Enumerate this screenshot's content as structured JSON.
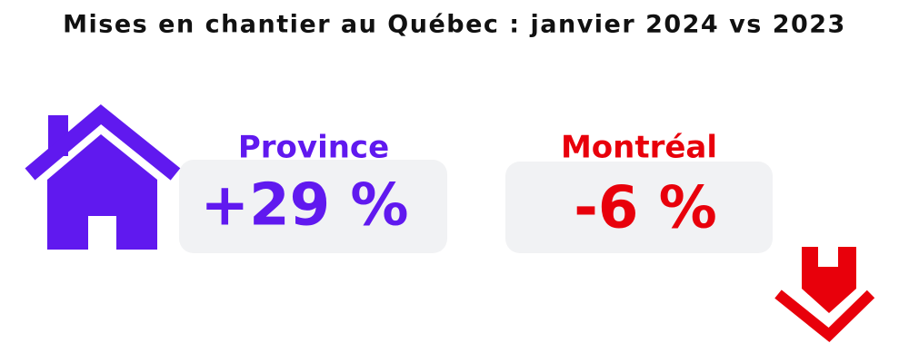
{
  "header": {
    "title": "Mises en chantier au Québec : janvier 2024 vs 2023"
  },
  "panels": [
    {
      "label": "Province",
      "value": "+29 %"
    },
    {
      "label": "Montréal",
      "value": "-6 %"
    }
  ]
}
